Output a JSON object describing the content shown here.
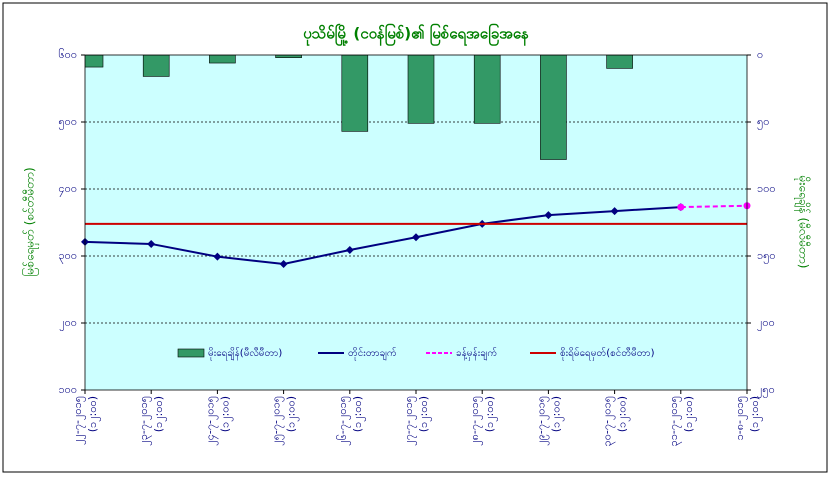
{
  "chart_data": {
    "type": "combo",
    "title": "ပုသိမ်မြို့ (ငဝန်မြစ်)၏ မြစ်ရေအခြေအနေ",
    "y_label": "မြစ်ရေမှတ် (စင်တီမီတာ)",
    "y2_label": "မိုးရေချိန် (မီလီမီတာ)",
    "categories": [
      [
        "၂၂-၇-၂၀၁၅",
        "(၁၂:၀၀)"
      ],
      [
        "၂၃-၇-၂၀၁၅",
        "(၁၂:၀၀)"
      ],
      [
        "၂၄-၇-၂၀၁၅",
        "(၁၂:၀၀)"
      ],
      [
        "၂၅-၇-၂၀၁၅",
        "(၁၂:၀၀)"
      ],
      [
        "၂၆-၇-၂၀၁၅",
        "(၁၂:၀၀)"
      ],
      [
        "၂၇-၇-၂၀၁၅",
        "(၁၂:၀၀)"
      ],
      [
        "၂၈-၇-၂၀၁၅",
        "(၁၂:၀၀)"
      ],
      [
        "၂၉-၇-၂၀၁၅",
        "(၁၂:၀၀)"
      ],
      [
        "၃၀-၇-၂၀၁၅",
        "(၁၂:၀၀)"
      ],
      [
        "၃၁-၇-၂၀၁၅",
        "(၁၂:၀၀)"
      ],
      [
        "၁-၈-၂၀၁၅",
        "(၁၂:၀၀)"
      ]
    ],
    "series": [
      {
        "name": "မိုးရေချိန်(မီလီမီတာ)",
        "kind": "bar",
        "axis": "y2",
        "color": "#339966",
        "values": [
          9,
          16,
          6,
          2,
          57,
          51,
          51,
          78,
          10,
          null,
          null
        ]
      },
      {
        "name": "တိုင်းတာချက်",
        "kind": "line",
        "color": "#000080",
        "values": [
          321,
          318,
          299,
          288,
          309,
          328,
          348,
          361,
          367,
          373,
          null
        ]
      },
      {
        "name": "ခန့်မှန်းချက်",
        "kind": "dashed",
        "color": "#ff00ff",
        "values": [
          null,
          null,
          null,
          null,
          null,
          null,
          null,
          null,
          null,
          373,
          375
        ]
      },
      {
        "name": "စိုးရိမ်ရေမှတ်(စင်တီမီတာ)",
        "kind": "hline",
        "color": "#cc0000",
        "value": 348
      }
    ],
    "ylim": [
      100,
      600
    ],
    "yticks": [
      {
        "value": 100,
        "label": "၁၀၀"
      },
      {
        "value": 200,
        "label": "၂၀၀"
      },
      {
        "value": 300,
        "label": "၃၀၀"
      },
      {
        "value": 400,
        "label": "၄၀၀"
      },
      {
        "value": 500,
        "label": "၅၀၀"
      },
      {
        "value": 600,
        "label": "၆၀၀"
      }
    ],
    "y2lim": [
      0,
      250
    ],
    "y2ticks": [
      {
        "value": 0,
        "label": "၀"
      },
      {
        "value": 50,
        "label": "၅၀"
      },
      {
        "value": 100,
        "label": "၁၀၀"
      },
      {
        "value": 150,
        "label": "၁၅၀"
      },
      {
        "value": 200,
        "label": "၂၀၀"
      },
      {
        "value": 250,
        "label": "၂၅၀"
      }
    ],
    "y2_reversed": true,
    "grid": true,
    "background": "#ccffff"
  }
}
